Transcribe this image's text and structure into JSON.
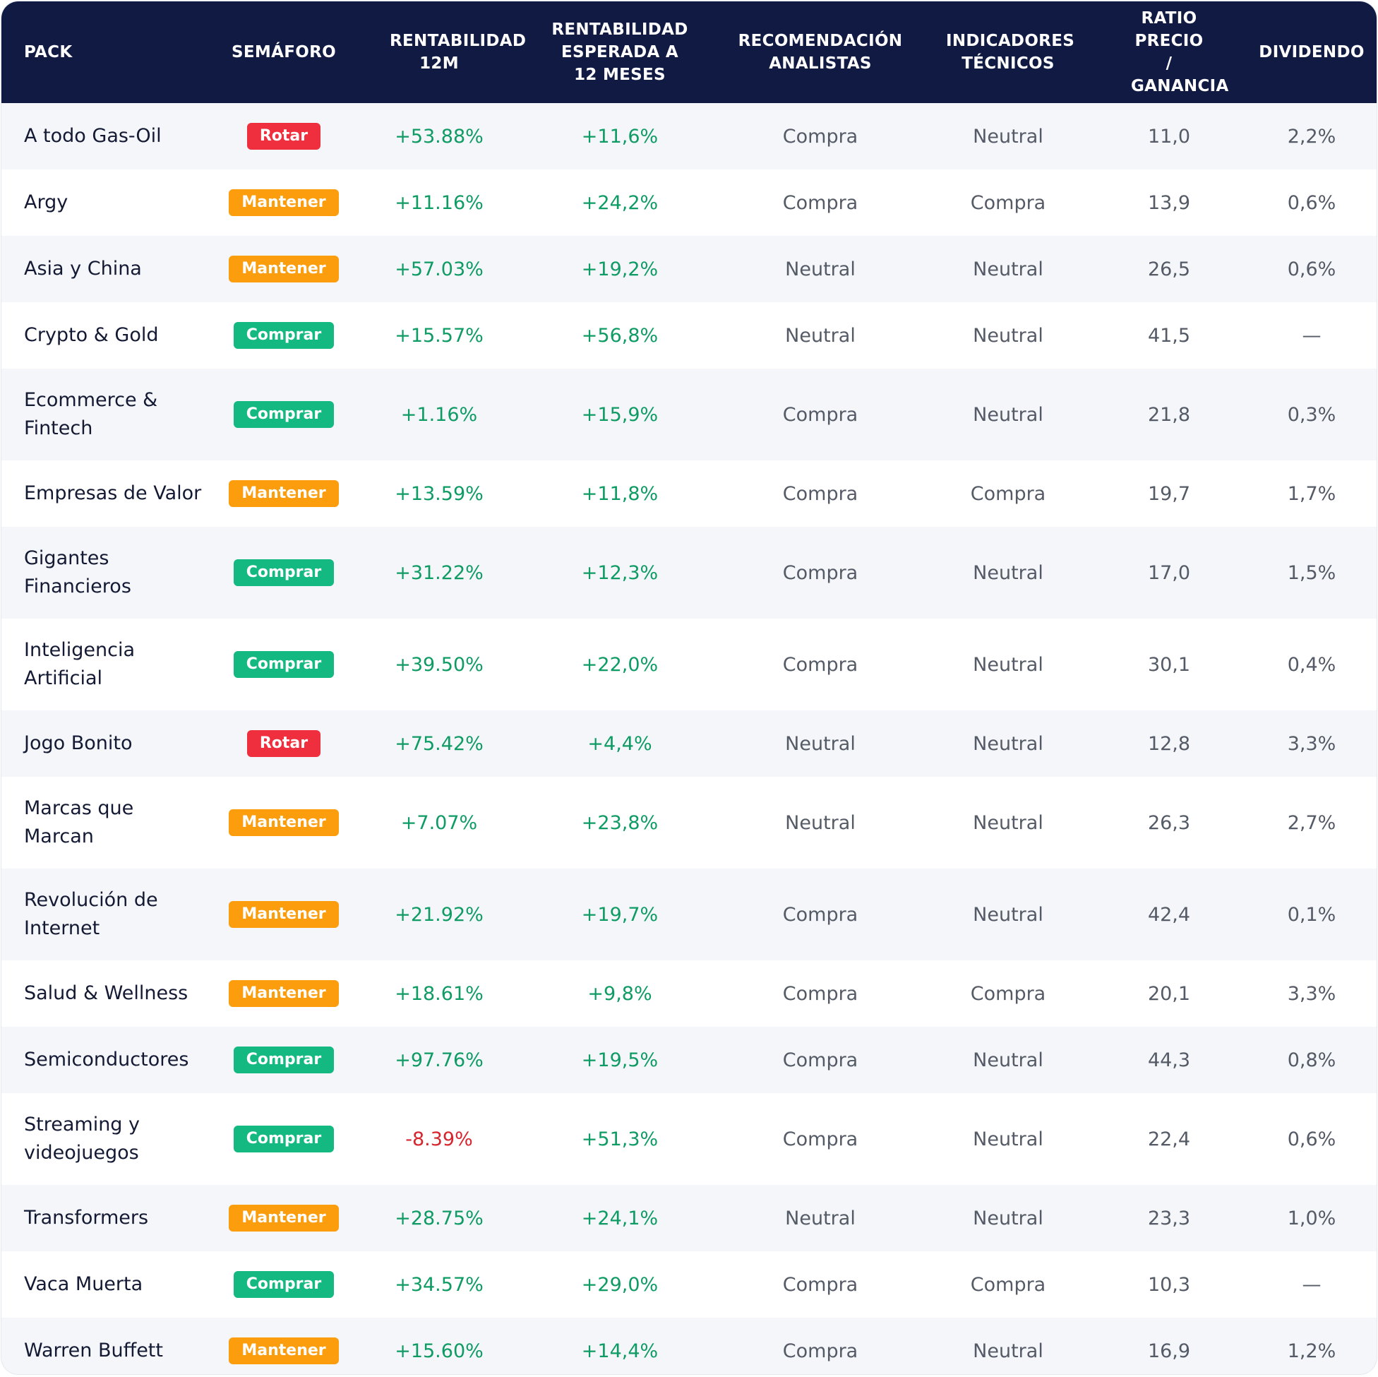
{
  "table": {
    "headers": [
      "PACK",
      "SEMÁFORO",
      "RENTABILIDAD 12M",
      "RENTABILIDAD ESPERADA A 12 MESES",
      "RECOMENDACIÓN ANALISTAS",
      "INDICADORES TÉCNICOS",
      "RATIO PRECIO / GANANCIA",
      "DIVIDENDO"
    ],
    "rows": [
      {
        "pack": "A todo Gas-Oil",
        "semaforo": "Rotar",
        "status": "rotar",
        "rent12m": "+53.88%",
        "rent12m_sign": "pos",
        "esperada": "+11,6%",
        "analistas": "Compra",
        "tecnicos": "Neutral",
        "per": "11,0",
        "dividendo": "2,2%"
      },
      {
        "pack": "Argy",
        "semaforo": "Mantener",
        "status": "mantener",
        "rent12m": "+11.16%",
        "rent12m_sign": "pos",
        "esperada": "+24,2%",
        "analistas": "Compra",
        "tecnicos": "Compra",
        "per": "13,9",
        "dividendo": "0,6%"
      },
      {
        "pack": "Asia y China",
        "semaforo": "Mantener",
        "status": "mantener",
        "rent12m": "+57.03%",
        "rent12m_sign": "pos",
        "esperada": "+19,2%",
        "analistas": "Neutral",
        "tecnicos": "Neutral",
        "per": "26,5",
        "dividendo": "0,6%"
      },
      {
        "pack": "Crypto & Gold",
        "semaforo": "Comprar",
        "status": "comprar",
        "rent12m": "+15.57%",
        "rent12m_sign": "pos",
        "esperada": "+56,8%",
        "analistas": "Neutral",
        "tecnicos": "Neutral",
        "per": "41,5",
        "dividendo": "—"
      },
      {
        "pack": "Ecommerce & Fintech",
        "semaforo": "Comprar",
        "status": "comprar",
        "rent12m": "+1.16%",
        "rent12m_sign": "pos",
        "esperada": "+15,9%",
        "analistas": "Compra",
        "tecnicos": "Neutral",
        "per": "21,8",
        "dividendo": "0,3%"
      },
      {
        "pack": "Empresas de Valor",
        "semaforo": "Mantener",
        "status": "mantener",
        "rent12m": "+13.59%",
        "rent12m_sign": "pos",
        "esperada": "+11,8%",
        "analistas": "Compra",
        "tecnicos": "Compra",
        "per": "19,7",
        "dividendo": "1,7%"
      },
      {
        "pack": "Gigantes Financieros",
        "semaforo": "Comprar",
        "status": "comprar",
        "rent12m": "+31.22%",
        "rent12m_sign": "pos",
        "esperada": "+12,3%",
        "analistas": "Compra",
        "tecnicos": "Neutral",
        "per": "17,0",
        "dividendo": "1,5%"
      },
      {
        "pack": "Inteligencia Artificial",
        "semaforo": "Comprar",
        "status": "comprar",
        "rent12m": "+39.50%",
        "rent12m_sign": "pos",
        "esperada": "+22,0%",
        "analistas": "Compra",
        "tecnicos": "Neutral",
        "per": "30,1",
        "dividendo": "0,4%"
      },
      {
        "pack": "Jogo Bonito",
        "semaforo": "Rotar",
        "status": "rotar",
        "rent12m": "+75.42%",
        "rent12m_sign": "pos",
        "esperada": "+4,4%",
        "analistas": "Neutral",
        "tecnicos": "Neutral",
        "per": "12,8",
        "dividendo": "3,3%"
      },
      {
        "pack": "Marcas que Marcan",
        "semaforo": "Mantener",
        "status": "mantener",
        "rent12m": "+7.07%",
        "rent12m_sign": "pos",
        "esperada": "+23,8%",
        "analistas": "Neutral",
        "tecnicos": "Neutral",
        "per": "26,3",
        "dividendo": "2,7%"
      },
      {
        "pack": "Revolución de Internet",
        "semaforo": "Mantener",
        "status": "mantener",
        "rent12m": "+21.92%",
        "rent12m_sign": "pos",
        "esperada": "+19,7%",
        "analistas": "Compra",
        "tecnicos": "Neutral",
        "per": "42,4",
        "dividendo": "0,1%"
      },
      {
        "pack": "Salud & Wellness",
        "semaforo": "Mantener",
        "status": "mantener",
        "rent12m": "+18.61%",
        "rent12m_sign": "pos",
        "esperada": "+9,8%",
        "analistas": "Compra",
        "tecnicos": "Compra",
        "per": "20,1",
        "dividendo": "3,3%"
      },
      {
        "pack": "Semiconductores",
        "semaforo": "Comprar",
        "status": "comprar",
        "rent12m": "+97.76%",
        "rent12m_sign": "pos",
        "esperada": "+19,5%",
        "analistas": "Compra",
        "tecnicos": "Neutral",
        "per": "44,3",
        "dividendo": "0,8%"
      },
      {
        "pack": "Streaming y videojuegos",
        "semaforo": "Comprar",
        "status": "comprar",
        "rent12m": "-8.39%",
        "rent12m_sign": "neg",
        "esperada": "+51,3%",
        "analistas": "Compra",
        "tecnicos": "Neutral",
        "per": "22,4",
        "dividendo": "0,6%"
      },
      {
        "pack": "Transformers",
        "semaforo": "Mantener",
        "status": "mantener",
        "rent12m": "+28.75%",
        "rent12m_sign": "pos",
        "esperada": "+24,1%",
        "analistas": "Neutral",
        "tecnicos": "Neutral",
        "per": "23,3",
        "dividendo": "1,0%"
      },
      {
        "pack": "Vaca Muerta",
        "semaforo": "Comprar",
        "status": "comprar",
        "rent12m": "+34.57%",
        "rent12m_sign": "pos",
        "esperada": "+29,0%",
        "analistas": "Compra",
        "tecnicos": "Compra",
        "per": "10,3",
        "dividendo": "—"
      },
      {
        "pack": "Warren Buffett",
        "semaforo": "Mantener",
        "status": "mantener",
        "rent12m": "+15.60%",
        "rent12m_sign": "pos",
        "esperada": "+14,4%",
        "analistas": "Compra",
        "tecnicos": "Neutral",
        "per": "16,9",
        "dividendo": "1,2%"
      }
    ]
  },
  "colors": {
    "header_bg": "#111a42",
    "positive": "#0f9b64",
    "negative": "#d6252e",
    "rotar": "#ef2f3e",
    "mantener": "#fb9d0c",
    "comprar": "#14b981"
  }
}
